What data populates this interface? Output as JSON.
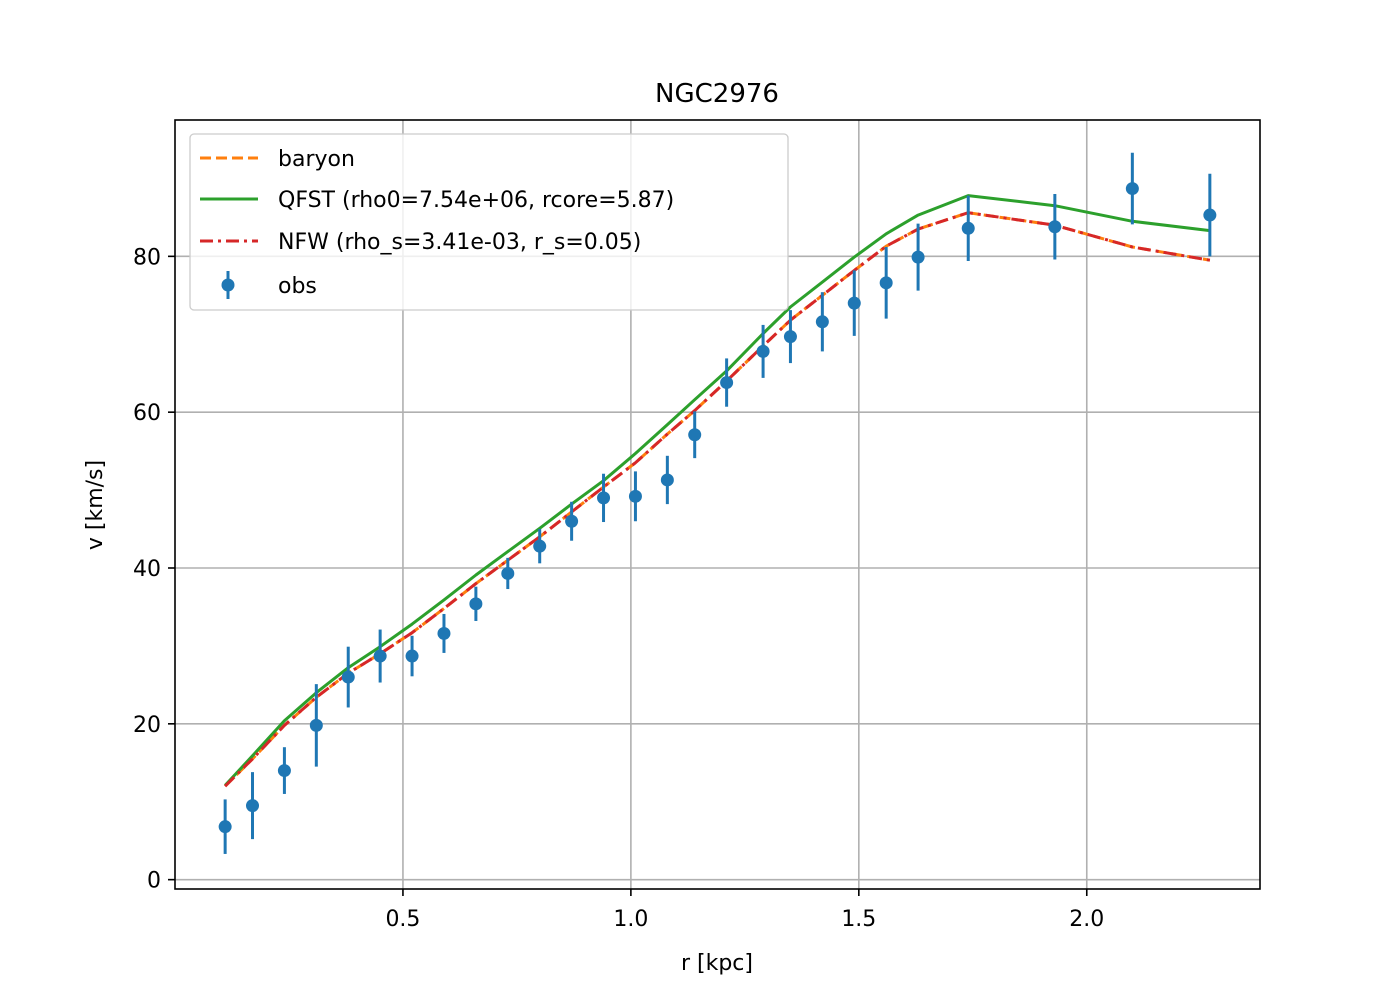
{
  "chart_data": {
    "type": "line",
    "title": "NGC2976",
    "xlabel": "r [kpc]",
    "ylabel": "v [km/s]",
    "xlim": [
      0.0,
      2.38
    ],
    "ylim": [
      -1.2,
      97.5
    ],
    "xticks": [
      0.5,
      1.0,
      1.5,
      2.0
    ],
    "xtick_labels": [
      "0.5",
      "1.0",
      "1.5",
      "2.0"
    ],
    "yticks": [
      0,
      20,
      40,
      60,
      80
    ],
    "ytick_labels": [
      "0",
      "20",
      "40",
      "60",
      "80"
    ],
    "grid": true,
    "legend_position": "top-left",
    "x": [
      0.11,
      0.17,
      0.24,
      0.31,
      0.38,
      0.45,
      0.52,
      0.59,
      0.66,
      0.73,
      0.8,
      0.87,
      0.94,
      1.01,
      1.08,
      1.14,
      1.21,
      1.29,
      1.35,
      1.42,
      1.49,
      1.56,
      1.63,
      1.74,
      1.93,
      2.1,
      2.27
    ],
    "series": [
      {
        "name": "baryon",
        "style": "dashed",
        "color": "#ff7f0e",
        "values": [
          12.0,
          15.5,
          19.8,
          23.4,
          26.5,
          29.0,
          31.7,
          34.8,
          38.0,
          41.0,
          44.0,
          47.2,
          50.4,
          53.5,
          57.2,
          60.2,
          64.0,
          68.5,
          71.8,
          75.0,
          78.2,
          81.3,
          83.5,
          85.6,
          84.0,
          81.2,
          79.5
        ]
      },
      {
        "name": "QFST (rho0=7.54e+06, rcore=5.87)",
        "style": "solid",
        "color": "#2ca02c",
        "values": [
          12.1,
          15.9,
          20.4,
          24.0,
          27.2,
          29.9,
          32.8,
          35.9,
          39.1,
          42.1,
          45.1,
          48.2,
          51.2,
          54.7,
          58.4,
          61.6,
          65.3,
          70.1,
          73.5,
          76.7,
          79.9,
          82.9,
          85.3,
          87.8,
          86.5,
          84.5,
          83.3
        ]
      },
      {
        "name": "NFW (rho_s=3.41e-03, r_s=0.05)",
        "style": "dashdot",
        "color": "#d62728",
        "values": [
          12.0,
          15.5,
          19.8,
          23.4,
          26.5,
          29.0,
          31.7,
          34.8,
          38.0,
          41.0,
          44.0,
          47.2,
          50.4,
          53.5,
          57.2,
          60.2,
          64.0,
          68.5,
          71.8,
          75.0,
          78.2,
          81.3,
          83.5,
          85.6,
          84.0,
          81.2,
          79.5
        ]
      },
      {
        "name": "obs",
        "style": "errorbar",
        "color": "#1f77b4",
        "values": [
          6.8,
          9.5,
          14.0,
          19.8,
          26.0,
          28.7,
          28.7,
          31.6,
          35.4,
          39.3,
          42.8,
          46.0,
          49.0,
          49.2,
          51.3,
          57.1,
          63.8,
          67.8,
          69.7,
          71.6,
          74.0,
          76.6,
          79.9,
          83.6,
          83.8,
          88.7,
          85.3
        ],
        "errors": [
          3.5,
          4.3,
          3.0,
          5.3,
          3.9,
          3.4,
          2.6,
          2.5,
          2.2,
          2.0,
          2.2,
          2.5,
          3.1,
          3.2,
          3.1,
          3.0,
          3.1,
          3.4,
          3.4,
          3.8,
          4.2,
          4.6,
          4.3,
          4.2,
          4.2,
          4.6,
          5.3
        ]
      }
    ]
  }
}
